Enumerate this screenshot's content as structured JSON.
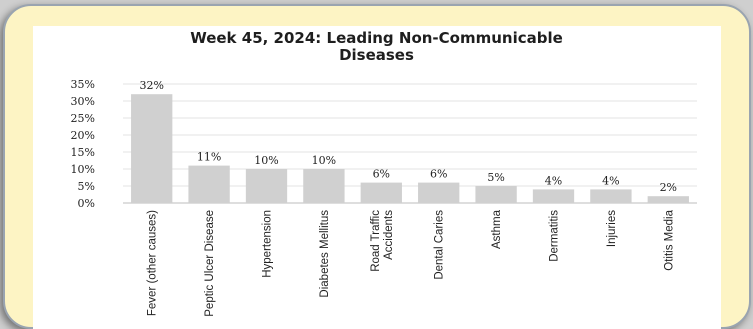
{
  "chart_data": {
    "type": "bar",
    "title_line1": "Week 45, 2024: Leading Non-Communicable",
    "title_line2": "Diseases",
    "xlabel": "",
    "ylabel": "",
    "ylim": [
      0,
      35
    ],
    "yticks": [
      "0%",
      "5%",
      "10%",
      "15%",
      "20%",
      "25%",
      "30%",
      "35%"
    ],
    "ytick_values": [
      0,
      5,
      10,
      15,
      20,
      25,
      30,
      35
    ],
    "grid": true,
    "bar_color": "#d0d0d0",
    "categories": [
      [
        "Fever (other causes)"
      ],
      [
        "Peptic Ulcer Disease"
      ],
      [
        "Hypertension"
      ],
      [
        "Diabetes Mellitus"
      ],
      [
        "Road Traffic",
        "Accidents"
      ],
      [
        "Dental Caries"
      ],
      [
        "Asthma"
      ],
      [
        "Dermatitis"
      ],
      [
        "Injuries"
      ],
      [
        "Otitis Media"
      ]
    ],
    "values": [
      32,
      11,
      10,
      10,
      6,
      6,
      5,
      4,
      4,
      2
    ],
    "data_labels": [
      "32%",
      "11%",
      "10%",
      "10%",
      "6%",
      "6%",
      "5%",
      "4%",
      "4%",
      "2%"
    ]
  }
}
